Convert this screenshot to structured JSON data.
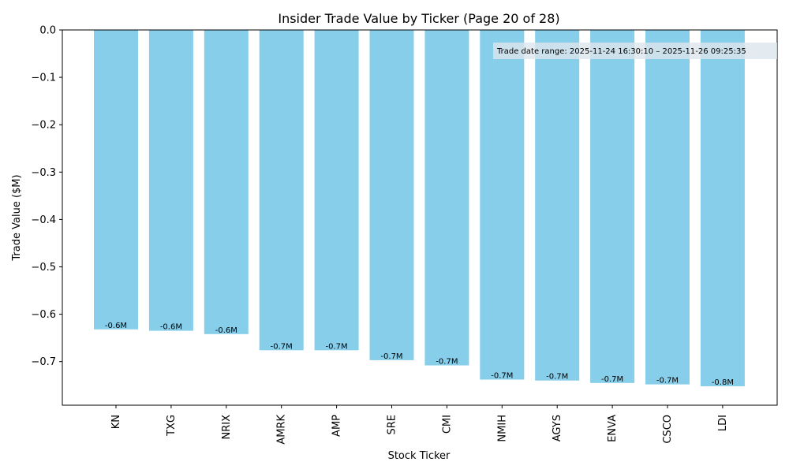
{
  "chart_data": {
    "type": "bar",
    "title": "Insider Trade Value by Ticker (Page 20 of 28)",
    "xlabel": "Stock Ticker",
    "ylabel": "Trade Value ($M)",
    "categories": [
      "KN",
      "TXG",
      "NRIX",
      "AMRK",
      "AMP",
      "SRE",
      "CMI",
      "NMIH",
      "AGYS",
      "ENVA",
      "CSCO",
      "LDI"
    ],
    "values": [
      -0.632,
      -0.635,
      -0.642,
      -0.676,
      -0.676,
      -0.697,
      -0.708,
      -0.738,
      -0.74,
      -0.745,
      -0.748,
      -0.752
    ],
    "data_labels": [
      "-0.6M",
      "-0.6M",
      "-0.6M",
      "-0.7M",
      "-0.7M",
      "-0.7M",
      "-0.7M",
      "-0.7M",
      "-0.7M",
      "-0.7M",
      "-0.7M",
      "-0.8M"
    ],
    "ylim": [
      -0.792,
      0.0
    ],
    "yticks": [
      0.0,
      -0.1,
      -0.2,
      -0.3,
      -0.4,
      -0.5,
      -0.6,
      -0.7
    ],
    "ytick_labels": [
      "0.0",
      "−0.1",
      "−0.2",
      "−0.3",
      "−0.4",
      "−0.5",
      "−0.6",
      "−0.7"
    ],
    "annotation": "Trade date range: 2025-11-24 16:30:10 – 2025-11-26 09:25:35",
    "grid": false,
    "colors": {
      "bar": "#87ceeb",
      "axis": "#000000",
      "annotation_box": "#dde6ec"
    }
  }
}
